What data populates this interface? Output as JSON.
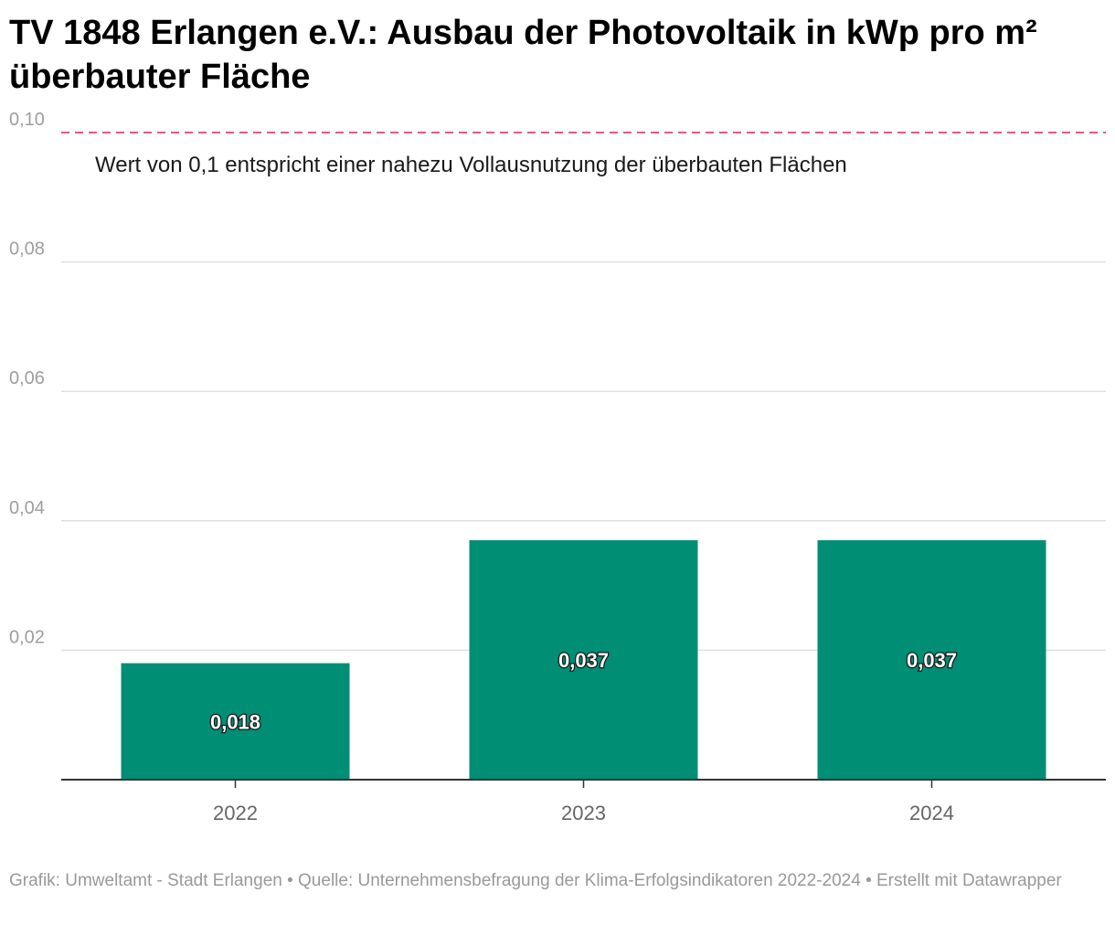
{
  "title": "TV 1848 Erlangen e.V.: Ausbau der Photovoltaik in kWp pro m² überbauter Fläche",
  "footer": "Grafik: Umweltamt - Stadt Erlangen • Quelle: Unternehmensbefragung der Klima-Erfolgsindikatoren 2022-2024 • Erstellt mit Datawrapper",
  "colors": {
    "bar": "#008e74",
    "reference_line": "#e05a8a",
    "grid": "#e0e0e0",
    "tick_label": "#9e9e9e",
    "axis": "#333333"
  },
  "chart_data": {
    "type": "bar",
    "categories": [
      "2022",
      "2023",
      "2024"
    ],
    "values": [
      0.018,
      0.037,
      0.037
    ],
    "value_labels": [
      "0,018",
      "0,037",
      "0,037"
    ],
    "ylim": [
      0,
      0.1
    ],
    "yticks": [
      0.02,
      0.04,
      0.06,
      0.08,
      0.1
    ],
    "ytick_labels": [
      "0,02",
      "0,04",
      "0,06",
      "0,08",
      "0,10"
    ],
    "grid": true,
    "reference_line": {
      "value": 0.1,
      "style": "dashed",
      "annotation": "Wert von 0,1 entspricht einer nahezu Vollausnutzung der überbauten Flächen"
    }
  }
}
